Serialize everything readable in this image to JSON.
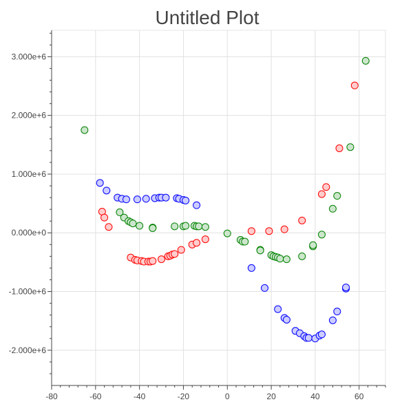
{
  "chart_data": {
    "type": "scatter",
    "title": "Untitled Plot",
    "xlabel": "",
    "ylabel": "",
    "xlim": [
      -80,
      72
    ],
    "ylim": [
      -2600000,
      3450000
    ],
    "x_ticks": [
      -80,
      -60,
      -40,
      -20,
      0,
      20,
      40,
      60
    ],
    "x_tick_labels": [
      "-80",
      "-60",
      "-40",
      "-20",
      "0",
      "20",
      "40",
      "60"
    ],
    "y_ticks": [
      -2000000,
      -1000000,
      0,
      1000000,
      2000000,
      3000000
    ],
    "y_tick_labels": [
      "-2.000e+6",
      "-1.000e+6",
      "0.000e+0",
      "1.000e+6",
      "2.000e+6",
      "3.000e+6"
    ],
    "grid": true,
    "legend": "none",
    "series": [
      {
        "color": "#0000ff",
        "fill": "#ccccff",
        "points": [
          [
            -58,
            850000
          ],
          [
            -55,
            720000
          ],
          [
            -50,
            600000
          ],
          [
            -48,
            580000
          ],
          [
            -46,
            570000
          ],
          [
            -41,
            570000
          ],
          [
            -37,
            580000
          ],
          [
            -33,
            590000
          ],
          [
            -31,
            600000
          ],
          [
            -30,
            600000
          ],
          [
            -28,
            600000
          ],
          [
            -23,
            590000
          ],
          [
            -22,
            580000
          ],
          [
            -20,
            560000
          ],
          [
            -19,
            550000
          ],
          [
            -14,
            470000
          ],
          [
            11,
            -600000
          ],
          [
            17,
            -940000
          ],
          [
            23,
            -1300000
          ],
          [
            26,
            -1450000
          ],
          [
            27,
            -1480000
          ],
          [
            31,
            -1670000
          ],
          [
            33,
            -1710000
          ],
          [
            35,
            -1760000
          ],
          [
            36,
            -1790000
          ],
          [
            37,
            -1790000
          ],
          [
            40,
            -1800000
          ],
          [
            42,
            -1750000
          ],
          [
            43,
            -1730000
          ],
          [
            48,
            -1490000
          ],
          [
            50,
            -1340000
          ],
          [
            54,
            -950000
          ],
          [
            54,
            -930000
          ]
        ]
      },
      {
        "color": "#008000",
        "fill": "#cce6cc",
        "points": [
          [
            -65,
            1750000
          ],
          [
            -49,
            350000
          ],
          [
            -47,
            260000
          ],
          [
            -45,
            200000
          ],
          [
            -44,
            180000
          ],
          [
            -43,
            160000
          ],
          [
            -40,
            120000
          ],
          [
            -34,
            90000
          ],
          [
            -34,
            80000
          ],
          [
            -24,
            110000
          ],
          [
            -20,
            110000
          ],
          [
            -19,
            120000
          ],
          [
            -15,
            120000
          ],
          [
            -14,
            110000
          ],
          [
            -13,
            110000
          ],
          [
            -10,
            100000
          ],
          [
            0,
            -10000
          ],
          [
            6,
            -120000
          ],
          [
            7,
            -150000
          ],
          [
            8,
            -150000
          ],
          [
            15,
            -290000
          ],
          [
            15,
            -300000
          ],
          [
            20,
            -380000
          ],
          [
            21,
            -400000
          ],
          [
            22,
            -410000
          ],
          [
            23,
            -420000
          ],
          [
            24,
            -440000
          ],
          [
            27,
            -450000
          ],
          [
            34,
            -400000
          ],
          [
            39,
            -230000
          ],
          [
            39,
            -210000
          ],
          [
            43,
            -30000
          ],
          [
            48,
            410000
          ],
          [
            50,
            630000
          ],
          [
            56,
            1460000
          ],
          [
            63,
            2930000
          ]
        ]
      },
      {
        "color": "#ff0000",
        "fill": "#ffcccc",
        "points": [
          [
            -57,
            360000
          ],
          [
            -56,
            260000
          ],
          [
            -54,
            100000
          ],
          [
            -44,
            -420000
          ],
          [
            -42,
            -460000
          ],
          [
            -41,
            -470000
          ],
          [
            -39,
            -480000
          ],
          [
            -38,
            -490000
          ],
          [
            -36,
            -490000
          ],
          [
            -35,
            -490000
          ],
          [
            -34,
            -480000
          ],
          [
            -30,
            -450000
          ],
          [
            -27,
            -400000
          ],
          [
            -26,
            -390000
          ],
          [
            -25,
            -370000
          ],
          [
            -24,
            -360000
          ],
          [
            -21,
            -290000
          ],
          [
            -16,
            -200000
          ],
          [
            -14,
            -170000
          ],
          [
            -10,
            -110000
          ],
          [
            11,
            30000
          ],
          [
            19,
            30000
          ],
          [
            26,
            60000
          ],
          [
            34,
            210000
          ],
          [
            43,
            660000
          ],
          [
            45,
            780000
          ],
          [
            51,
            1440000
          ],
          [
            58,
            2510000
          ]
        ]
      }
    ]
  }
}
